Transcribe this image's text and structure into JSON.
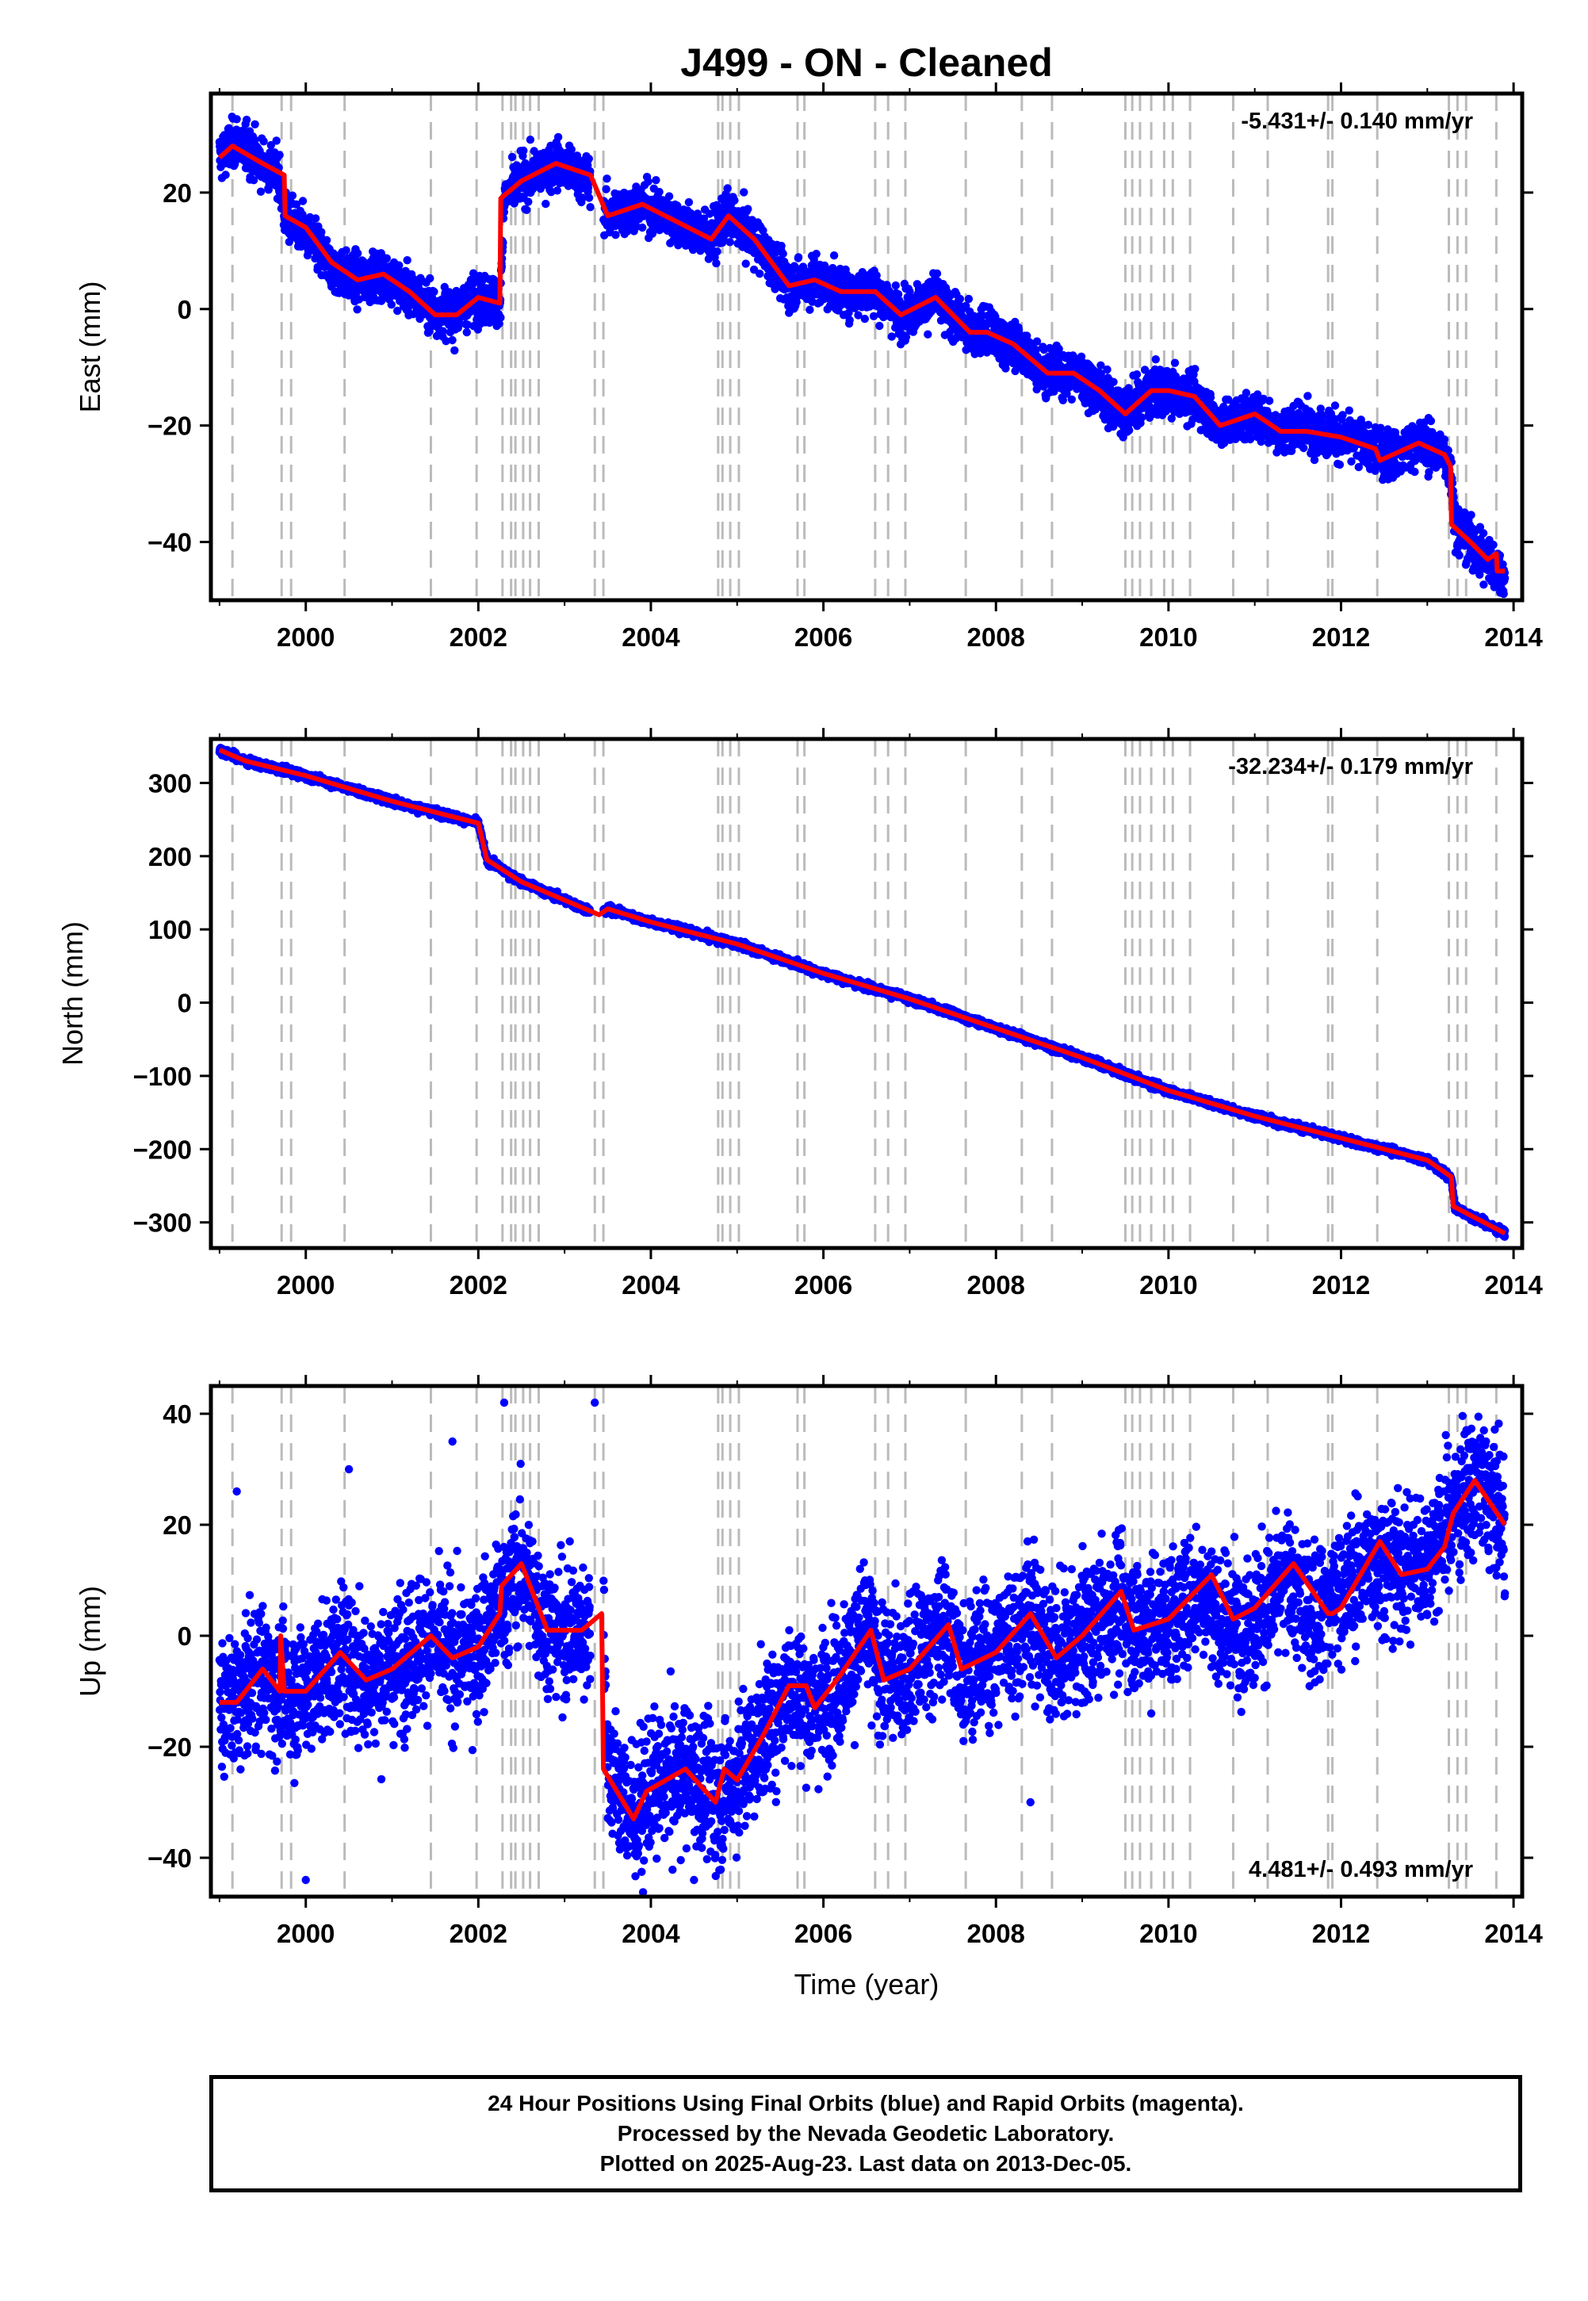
{
  "title": "J499  - ON - Cleaned",
  "colors": {
    "points": "#0000ff",
    "model": "#ff0000",
    "offsets": "#bbbbbb",
    "frame": "#000000"
  },
  "chart_data": [
    {
      "type": "scatter",
      "ylabel": "East (mm)",
      "xlabel": "",
      "xlim": [
        1998.9,
        2014.1
      ],
      "ylim": [
        -50,
        37
      ],
      "xticks": [
        2000,
        2002,
        2004,
        2006,
        2008,
        2010,
        2012,
        2014
      ],
      "xtick_labels": [
        "2000",
        "2002",
        "2004",
        "2006",
        "2008",
        "2010",
        "2012",
        "2014"
      ],
      "yticks": [
        -40,
        -20,
        0,
        20
      ],
      "ytick_labels": [
        "−40",
        "−20",
        "0",
        "20"
      ],
      "rate_label": "-5.431+/- 0.140 mm/yr",
      "rate_position": "top-right",
      "series": [
        {
          "role": "data",
          "color": "#0000ff",
          "scatter_sd": 2.0,
          "x": [
            1999.0,
            1999.2,
            1999.5,
            1999.7,
            1999.75,
            2000.0,
            2000.3,
            2000.6,
            2000.9,
            2001.2,
            2001.5,
            2001.7,
            2002.0,
            2002.25,
            2002.3,
            2002.5,
            2002.9,
            2003.3,
            2003.5,
            2003.9,
            2004.3,
            2004.7,
            2004.9,
            2005.2,
            2005.6,
            2005.9,
            2006.2,
            2006.6,
            2006.9,
            2007.3,
            2007.7,
            2007.9,
            2008.2,
            2008.6,
            2008.9,
            2009.2,
            2009.5,
            2009.8,
            2010.0,
            2010.3,
            2010.6,
            2011.0,
            2011.3,
            2011.6,
            2012.0,
            2012.4,
            2012.5,
            2012.9,
            2013.2,
            2013.28,
            2013.32,
            2013.5,
            2013.75,
            2013.9
          ],
          "y": [
            26,
            29,
            25,
            23,
            16,
            13,
            7,
            5,
            6,
            3,
            0,
            -1,
            2,
            1,
            19,
            22,
            25,
            22,
            16,
            18,
            15,
            12,
            16,
            12,
            4,
            5,
            3,
            3,
            -1,
            2,
            -4,
            -4,
            -6,
            -11,
            -11,
            -14,
            -18,
            -14,
            -14,
            -15,
            -20,
            -18,
            -21,
            -20,
            -22,
            -24,
            -25,
            -23,
            -25,
            -28,
            -37,
            -40,
            -44,
            -46
          ]
        }
      ],
      "model": {
        "x": [
          1999.0,
          1999.15,
          1999.5,
          1999.75,
          1999.76,
          2000.0,
          2000.3,
          2000.6,
          2000.9,
          2001.2,
          2001.5,
          2001.75,
          2002.0,
          2002.25,
          2002.26,
          2002.5,
          2002.9,
          2003.3,
          2003.5,
          2003.9,
          2004.3,
          2004.7,
          2004.9,
          2005.2,
          2005.6,
          2005.9,
          2006.2,
          2006.6,
          2006.9,
          2007.3,
          2007.7,
          2007.9,
          2008.2,
          2008.6,
          2008.9,
          2009.2,
          2009.5,
          2009.8,
          2010.0,
          2010.3,
          2010.6,
          2011.0,
          2011.3,
          2011.6,
          2012.0,
          2012.4,
          2012.45,
          2012.9,
          2013.2,
          2013.27,
          2013.28,
          2013.5,
          2013.7,
          2013.8,
          2013.81,
          2013.9
        ],
        "y": [
          26,
          28,
          25,
          23,
          16,
          14,
          8,
          5,
          6,
          3,
          -1,
          -1,
          2,
          1,
          19,
          22,
          25,
          23,
          16,
          18,
          15,
          12,
          16,
          12,
          4,
          5,
          3,
          3,
          -1,
          2,
          -4,
          -4,
          -6,
          -11,
          -11,
          -14,
          -18,
          -14,
          -14,
          -15,
          -20,
          -18,
          -21,
          -21,
          -22,
          -24,
          -26,
          -23,
          -25,
          -27,
          -37,
          -40,
          -43,
          -42,
          -45,
          -45
        ]
      },
      "offset_epochs": [
        1999.15,
        1999.72,
        1999.83,
        2000.45,
        2001.45,
        2001.98,
        2002.28,
        2002.38,
        2002.43,
        2002.52,
        2002.6,
        2002.7,
        2003.35,
        2003.45,
        2004.78,
        2004.83,
        2004.92,
        2005.02,
        2005.7,
        2005.78,
        2006.6,
        2006.75,
        2006.95,
        2007.65,
        2008.3,
        2008.65,
        2009.5,
        2009.58,
        2009.67,
        2009.8,
        2009.95,
        2010.05,
        2010.25,
        2010.75,
        2011.15,
        2011.85,
        2011.9,
        2012.42,
        2013.25,
        2013.35,
        2013.45,
        2013.8
      ]
    },
    {
      "type": "scatter",
      "ylabel": "North (mm)",
      "xlabel": "",
      "xlim": [
        1998.9,
        2014.1
      ],
      "ylim": [
        -335,
        360
      ],
      "xticks": [
        2000,
        2002,
        2004,
        2006,
        2008,
        2010,
        2012,
        2014
      ],
      "xtick_labels": [
        "2000",
        "2002",
        "2004",
        "2006",
        "2008",
        "2010",
        "2012",
        "2014"
      ],
      "yticks": [
        -300,
        -200,
        -100,
        0,
        100,
        200,
        300
      ],
      "ytick_labels": [
        "−300",
        "−200",
        "−100",
        "0",
        "100",
        "200",
        "300"
      ],
      "rate_label": "-32.234+/- 0.179 mm/yr",
      "rate_position": "top-right",
      "series": [
        {
          "role": "data",
          "color": "#0000ff",
          "scatter_sd": 2.5,
          "x": [
            1999.0,
            1999.3,
            2000.0,
            2001.0,
            2002.0,
            2002.1,
            2002.5,
            2003.0,
            2003.4,
            2003.5,
            2004.0,
            2005.0,
            2006.0,
            2007.0,
            2008.0,
            2009.0,
            2010.0,
            2011.0,
            2012.0,
            2013.0,
            2013.28,
            2013.32,
            2013.9
          ],
          "y": [
            345,
            330,
            310,
            275,
            245,
            195,
            165,
            140,
            120,
            128,
            110,
            80,
            40,
            5,
            -35,
            -75,
            -120,
            -155,
            -185,
            -215,
            -240,
            -280,
            -315
          ]
        }
      ],
      "model": {
        "x": [
          1999.0,
          1999.3,
          2000.0,
          2001.0,
          2002.0,
          2002.1,
          2002.5,
          2003.0,
          2003.4,
          2003.5,
          2004.0,
          2005.0,
          2006.0,
          2007.0,
          2008.0,
          2009.0,
          2010.0,
          2011.0,
          2012.0,
          2013.0,
          2013.28,
          2013.3,
          2013.9
        ],
        "y": [
          345,
          330,
          310,
          275,
          245,
          195,
          165,
          140,
          120,
          128,
          110,
          80,
          40,
          5,
          -35,
          -75,
          -120,
          -155,
          -185,
          -215,
          -238,
          -278,
          -315
        ]
      },
      "offset_epochs": [
        1999.15,
        1999.72,
        1999.83,
        2000.45,
        2001.45,
        2001.98,
        2002.28,
        2002.38,
        2002.43,
        2002.52,
        2002.6,
        2002.7,
        2003.35,
        2003.45,
        2004.78,
        2004.83,
        2004.92,
        2005.02,
        2005.7,
        2005.78,
        2006.6,
        2006.75,
        2006.95,
        2007.65,
        2008.3,
        2008.65,
        2009.5,
        2009.58,
        2009.67,
        2009.8,
        2009.95,
        2010.05,
        2010.25,
        2010.75,
        2011.15,
        2011.85,
        2011.9,
        2012.42,
        2013.25,
        2013.35,
        2013.45,
        2013.8
      ]
    },
    {
      "type": "scatter",
      "ylabel": "Up (mm)",
      "xlabel": "Time (year)",
      "xlim": [
        1998.9,
        2014.1
      ],
      "ylim": [
        -47,
        45
      ],
      "xticks": [
        2000,
        2002,
        2004,
        2006,
        2008,
        2010,
        2012,
        2014
      ],
      "xtick_labels": [
        "2000",
        "2002",
        "2004",
        "2006",
        "2008",
        "2010",
        "2012",
        "2014"
      ],
      "yticks": [
        -40,
        -20,
        0,
        20,
        40
      ],
      "ytick_labels": [
        "−40",
        "−20",
        "0",
        "20",
        "40"
      ],
      "rate_label": "4.481+/- 0.493 mm/yr",
      "rate_position": "bottom-right",
      "series": [
        {
          "role": "data",
          "color": "#0000ff",
          "scatter_sd": 6.0,
          "x": [
            1999.0,
            1999.2,
            1999.5,
            1999.7,
            1999.75,
            2000.0,
            2000.4,
            2000.7,
            2001.0,
            2001.4,
            2001.7,
            2002.0,
            2002.25,
            2002.5,
            2002.8,
            2003.2,
            2003.45,
            2003.5,
            2003.8,
            2004.0,
            2004.4,
            2004.8,
            2005.0,
            2005.3,
            2005.6,
            2005.9,
            2006.2,
            2006.5,
            2006.7,
            2007.0,
            2007.4,
            2007.6,
            2008.0,
            2008.4,
            2008.7,
            2009.0,
            2009.4,
            2009.6,
            2010.0,
            2010.4,
            2010.6,
            2011.0,
            2011.4,
            2011.6,
            2012.0,
            2012.4,
            2012.6,
            2013.0,
            2013.4,
            2013.6,
            2013.9
          ],
          "y": [
            -12,
            -12,
            -6,
            -10,
            -10,
            -10,
            -3,
            -8,
            -6,
            0,
            -4,
            -2,
            5,
            13,
            1,
            1,
            4,
            -24,
            -33,
            -28,
            -24,
            -30,
            -25,
            -18,
            -9,
            -13,
            -7,
            1,
            -8,
            -6,
            2,
            -6,
            -3,
            4,
            -4,
            0,
            6,
            2,
            3,
            9,
            2,
            3,
            10,
            4,
            8,
            14,
            12,
            14,
            25,
            28,
            20
          ]
        }
      ],
      "model": {
        "x": [
          1999.0,
          1999.2,
          1999.5,
          1999.7,
          1999.71,
          1999.75,
          2000.0,
          2000.4,
          2000.7,
          2001.0,
          2001.45,
          2001.7,
          2002.0,
          2002.25,
          2002.27,
          2002.5,
          2002.8,
          2003.2,
          2003.43,
          2003.45,
          2003.8,
          2003.95,
          2004.4,
          2004.75,
          2004.85,
          2005.0,
          2005.3,
          2005.6,
          2005.8,
          2005.9,
          2006.2,
          2006.55,
          2006.7,
          2007.0,
          2007.45,
          2007.6,
          2008.0,
          2008.4,
          2008.7,
          2009.0,
          2009.45,
          2009.6,
          2010.0,
          2010.5,
          2010.75,
          2011.0,
          2011.45,
          2011.85,
          2011.9,
          2012.0,
          2012.45,
          2012.7,
          2013.0,
          2013.2,
          2013.3,
          2013.55,
          2013.9
        ],
        "y": [
          -12,
          -12,
          -6,
          -10,
          0,
          -10,
          -10,
          -3,
          -8,
          -6,
          0,
          -4,
          -2,
          4,
          9,
          13,
          1,
          1,
          4,
          -24,
          -33,
          -28,
          -24,
          -30,
          -24,
          -26,
          -18,
          -9,
          -9,
          -13,
          -7,
          1,
          -8,
          -6,
          2,
          -6,
          -3,
          4,
          -4,
          0,
          8,
          1,
          3,
          11,
          3,
          5,
          13,
          4,
          4,
          5,
          17,
          11,
          12,
          16,
          22,
          28,
          20
        ]
      },
      "offset_epochs": [
        1999.15,
        1999.72,
        1999.83,
        2000.45,
        2001.45,
        2001.98,
        2002.28,
        2002.38,
        2002.43,
        2002.52,
        2002.6,
        2002.7,
        2003.35,
        2003.45,
        2004.78,
        2004.83,
        2004.92,
        2005.02,
        2005.7,
        2005.78,
        2006.6,
        2006.75,
        2006.95,
        2007.65,
        2008.3,
        2008.65,
        2009.5,
        2009.58,
        2009.67,
        2009.8,
        2009.95,
        2010.05,
        2010.25,
        2010.75,
        2011.15,
        2011.85,
        2011.9,
        2012.42,
        2013.25,
        2013.35,
        2013.45,
        2013.8
      ]
    }
  ],
  "footer": {
    "line1": "24 Hour Positions Using Final Orbits (blue) and Rapid Orbits (magenta).",
    "line2": "Processed by the Nevada Geodetic Laboratory.",
    "line3": "Plotted on 2025-Aug-23. Last data on 2013-Dec-05."
  }
}
